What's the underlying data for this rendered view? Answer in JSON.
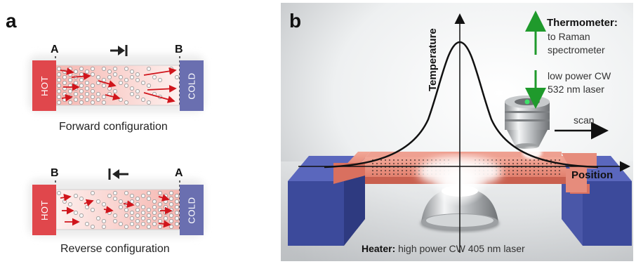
{
  "panel_a": {
    "letter": "a",
    "forward": {
      "left_marker": "A",
      "right_marker": "B",
      "hot_label": "HOT",
      "cold_label": "COLD",
      "caption": "Forward configuration"
    },
    "reverse": {
      "left_marker": "B",
      "right_marker": "A",
      "hot_label": "HOT",
      "cold_label": "COLD",
      "caption": "Reverse configuration"
    }
  },
  "panel_b": {
    "letter": "b",
    "y_axis_label": "Temperature",
    "x_axis_label": "Position",
    "thermometer_title": "Thermometer:",
    "thermometer_line1": "to Raman",
    "thermometer_line2": "spectrometer",
    "laser_line1": "low power CW",
    "laser_line2": "532 nm laser",
    "scan_label": "scan",
    "heater_title": "Heater:",
    "heater_text": " high power CW 405 nm laser"
  },
  "colors": {
    "hot": "#e0474c",
    "cold": "#6a6fb0",
    "arrow_red": "#d0151c",
    "green_arrow": "#1f9a2c",
    "membrane": "#e89a8a"
  }
}
